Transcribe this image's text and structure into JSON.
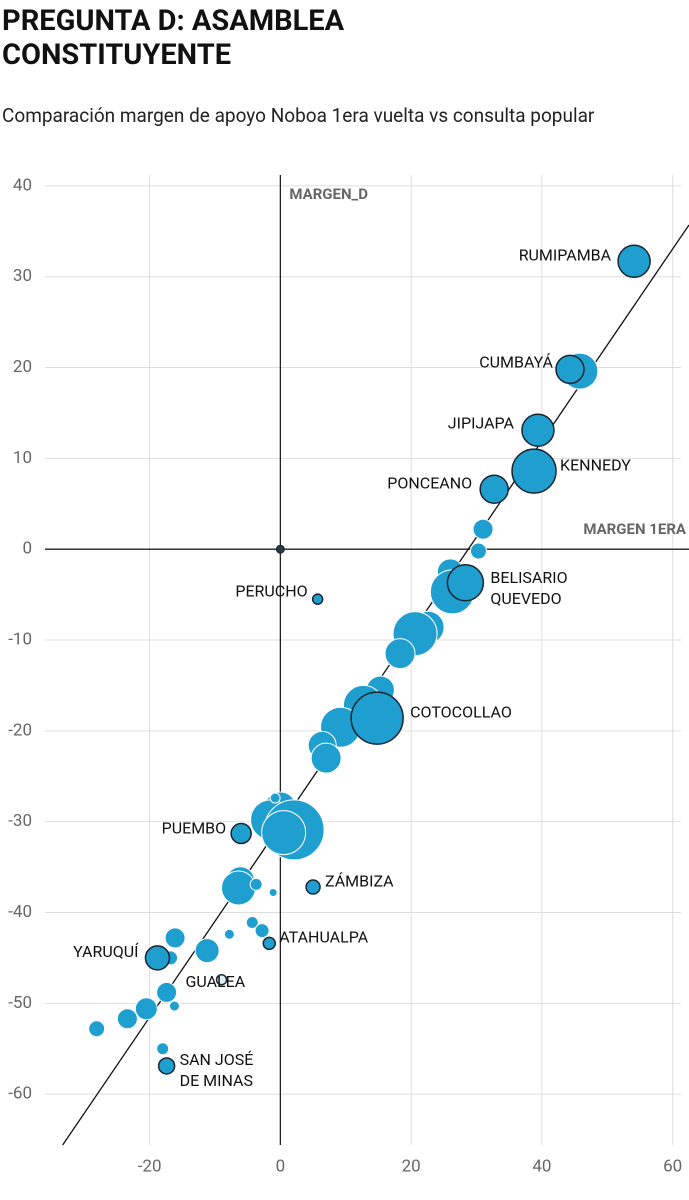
{
  "chart_data": {
    "type": "scatter",
    "title": "PREGUNTA D: ASAMBLEA CONSTITUYENTE",
    "subtitle": "Comparación margen de apoyo Noboa 1era vuelta vs consulta popular",
    "xlabel": "MARGEN 1ERA",
    "ylabel": "MARGEN_D",
    "xlim": [
      -36,
      62.5
    ],
    "ylim": [
      -65.6,
      41.2
    ],
    "xticks": [
      -20,
      0,
      20,
      40,
      60
    ],
    "yticks": [
      -60,
      -50,
      -40,
      -30,
      -20,
      -10,
      0,
      10,
      20,
      30,
      40
    ],
    "grid": true,
    "color": "#1f9fcf",
    "reference_line": {
      "x": [
        -33.3,
        62.5
      ],
      "y": [
        -65.6,
        35.7
      ]
    },
    "x": [
      54.1,
      44.3,
      39.4,
      38.8,
      32.7,
      28.3,
      5.7,
      14.8,
      -6.0,
      5.0,
      -1.7,
      -18.8,
      -9.0,
      -17.4,
      0,
      45.8,
      31.0,
      30.3,
      26.0,
      26.3,
      22.6,
      20.6,
      18.3,
      15.3,
      12.7,
      13.8,
      9.2,
      6.4,
      7.0,
      0,
      -1.5,
      2.1,
      -0.8,
      0.5,
      -6.1,
      -6.4,
      -3.7,
      -1.1,
      -4.3,
      -2.8,
      -7.8,
      -11.2,
      -16.1,
      -16.8,
      -17.4,
      -16.2,
      -20.5,
      -23.4,
      -28.1,
      -18.0
    ],
    "y": [
      31.7,
      19.8,
      13.1,
      8.6,
      6.6,
      -3.7,
      -5.5,
      -18.6,
      -31.3,
      -37.2,
      -43.4,
      -45.0,
      -47.4,
      -56.9,
      0,
      19.6,
      2.2,
      -0.2,
      -2.5,
      -4.7,
      -8.6,
      -9.3,
      -11.5,
      -15.5,
      -17.2,
      -18.5,
      -19.6,
      -21.6,
      -23.0,
      -28.5,
      -29.8,
      -30.9,
      -27.4,
      -31.2,
      -36.5,
      -37.3,
      -36.9,
      -37.8,
      -41.1,
      -42.0,
      -42.4,
      -44.2,
      -42.8,
      -45.0,
      -48.8,
      -50.3,
      -50.6,
      -51.7,
      -52.8,
      -55.0
    ],
    "sizes": [
      16,
      14,
      16,
      22,
      14,
      18,
      5,
      26,
      10,
      7,
      6,
      12,
      5,
      8,
      4,
      18,
      10,
      8,
      13,
      22,
      16,
      22,
      15,
      14,
      20,
      18,
      20,
      14,
      15,
      16,
      20,
      30,
      5,
      22,
      14,
      17,
      6,
      4,
      6,
      7,
      5,
      12,
      10,
      7,
      10,
      5,
      11,
      10,
      8,
      6
    ],
    "labels": [
      "RUMIPAMBA",
      "CUMBAYÁ",
      "JIPIJAPA",
      "KENNEDY",
      "PONCEANO",
      [
        "BELISARIO",
        "QUEVEDO"
      ],
      "PERUCHO",
      "COTOCOLLAO",
      "PUEMBO",
      "ZÁMBIZA",
      "ATAHUALPA",
      "YARUQUÍ",
      "GUALEA",
      [
        "SAN JOSÉ",
        "DE MINAS"
      ],
      null,
      null,
      null,
      null,
      null,
      null,
      null,
      null,
      null,
      null,
      null,
      null,
      null,
      null,
      null,
      null,
      null,
      null,
      null,
      null,
      null,
      null,
      null,
      null,
      null,
      null,
      null,
      null,
      null,
      null,
      null,
      null,
      null,
      null,
      null,
      null
    ]
  }
}
